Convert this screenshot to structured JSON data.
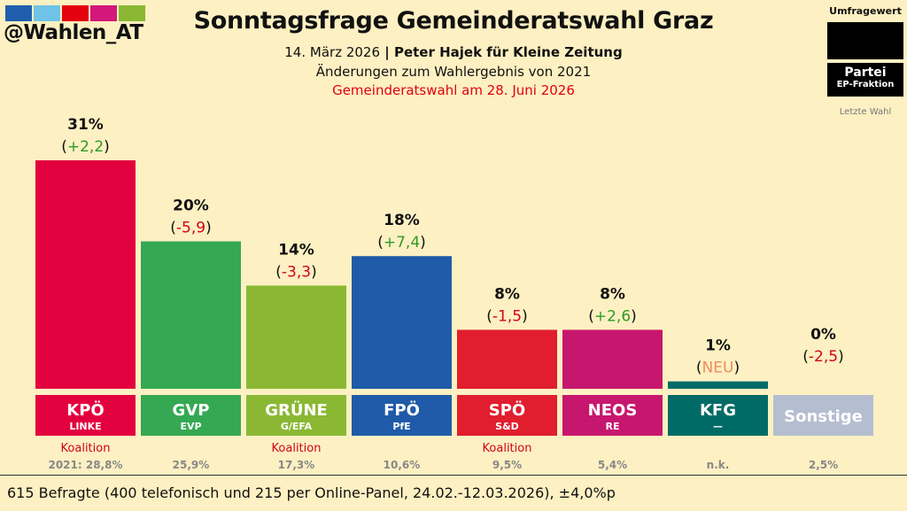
{
  "header": {
    "handle": "@Wahlen_AT",
    "title": "Sonntagsfrage Gemeinderatswahl Graz",
    "date": "14. März 2026",
    "separator": " | ",
    "source": "Peter Hajek für Kleine Zeitung",
    "subtitle": "Änderungen zum Wahlergebnis von 2021",
    "election_note": "Gemeinderatswahl am 28. Juni 2026"
  },
  "brand_colors": [
    "#1F5EAD",
    "#6FC3E6",
    "#E3000F",
    "#D4177A",
    "#8AB833"
  ],
  "legend": {
    "title": "Umfragewert",
    "party": "Partei",
    "faction": "EP-Fraktion",
    "last": "Letzte Wahl"
  },
  "colors": {
    "positive": "#2E9B24",
    "negative": "#D0021B",
    "new": "#F08A5D",
    "text": "#111111"
  },
  "chart_data": {
    "type": "bar",
    "title": "Sonntagsfrage Gemeinderatswahl Graz",
    "ylim": [
      0,
      31
    ],
    "categories": [
      "KPÖ",
      "GVP",
      "GRÜNE",
      "FPÖ",
      "SPÖ",
      "NEOS",
      "KFG",
      "Sonstige"
    ],
    "factions": [
      "LINKE",
      "EVP",
      "G/EFA",
      "PfE",
      "S&D",
      "RE",
      "—",
      ""
    ],
    "values": [
      31,
      20,
      14,
      18,
      8,
      8,
      1,
      0
    ],
    "value_labels": [
      "31%",
      "20%",
      "14%",
      "18%",
      "8%",
      "8%",
      "1%",
      "0%"
    ],
    "changes": [
      "+2,2",
      "-5,9",
      "-3,3",
      "+7,4",
      "-1,5",
      "+2,6",
      "NEU",
      "-2,5"
    ],
    "change_types": [
      "pos",
      "neg",
      "neg",
      "pos",
      "neg",
      "pos",
      "new",
      "neg"
    ],
    "coalition": [
      "Koalition",
      "",
      "Koalition",
      "",
      "Koalition",
      "",
      "",
      ""
    ],
    "last_election": [
      "2021: 28,8%",
      "25,9%",
      "17,3%",
      "10,6%",
      "9,5%",
      "5,4%",
      "n.k.",
      "2,5%"
    ],
    "colors": [
      "#E3003F",
      "#35A853",
      "#8AB833",
      "#1F5BA8",
      "#E01E2E",
      "#C7166E",
      "#006B66",
      "#B4BED0"
    ]
  },
  "footer": {
    "text": "615 Befragte (400 telefonisch und 215 per Online-Panel, 24.02.-12.03.2026), ±4,0%p"
  }
}
